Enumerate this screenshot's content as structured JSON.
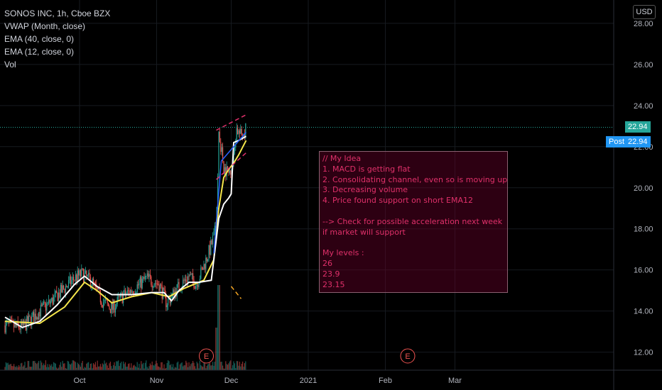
{
  "legend": {
    "title": "SONOS INC, 1h, Cboe BZX",
    "vwap": "VWAP (Month, close)",
    "ema40": "EMA (40, close, 0)",
    "ema12": "EMA (12, close, 0)",
    "vol": "Vol"
  },
  "currency": "USD",
  "last_price": "22.94",
  "post_label": "Post",
  "post_price": "22.94",
  "note": {
    "lines": [
      "// My Idea",
      "1. MACD is getting flat",
      "2. Consolidating channel, even so is moving up",
      "3. Decreasing volume",
      "4. Price found support on short EMA12",
      "",
      "--> Check for possible acceleration next week",
      "if market will support",
      "",
      "My levels :",
      "26",
      "23.9",
      "23.15"
    ]
  },
  "earnings_marker": "E",
  "colors": {
    "background": "#000000",
    "up": "#26a69a",
    "down": "#ef5350",
    "ema12": "#ffffff",
    "ema40": "#f5e64b",
    "vwap": "#2962ff",
    "annotation": "#e0306a",
    "orange": "#f5a623",
    "last_price_badge": "#26a69a",
    "post_badge": "#2196f3"
  },
  "chart_data": {
    "type": "line",
    "x_ticks": [
      "Oct",
      "Nov",
      "Dec",
      "2021",
      "Feb",
      "Mar"
    ],
    "y_ticks": [
      "12.00",
      "14.00",
      "16.00",
      "18.00",
      "20.00",
      "22.00",
      "24.00",
      "26.00",
      "28.00"
    ],
    "ylim": [
      11.4,
      28.1
    ],
    "price_path": [
      {
        "t": "Sep 1",
        "close": 13.3
      },
      {
        "t": "Sep 8",
        "close": 13.2
      },
      {
        "t": "Sep 15",
        "close": 14.0
      },
      {
        "t": "Sep 20",
        "close": 14.5
      },
      {
        "t": "Sep 24",
        "close": 15.0
      },
      {
        "t": "Sep 29",
        "close": 15.6
      },
      {
        "t": "Oct 2",
        "close": 15.8
      },
      {
        "t": "Oct 6",
        "close": 15.4
      },
      {
        "t": "Oct 10",
        "close": 14.5
      },
      {
        "t": "Oct 14",
        "close": 14.1
      },
      {
        "t": "Oct 18",
        "close": 14.7
      },
      {
        "t": "Oct 23",
        "close": 15.1
      },
      {
        "t": "Oct 28",
        "close": 15.6
      },
      {
        "t": "Nov 2",
        "close": 15.3
      },
      {
        "t": "Nov 5",
        "close": 14.4
      },
      {
        "t": "Nov 10",
        "close": 15.2
      },
      {
        "t": "Nov 14",
        "close": 15.7
      },
      {
        "t": "Nov 17",
        "close": 15.3
      },
      {
        "t": "Nov 20",
        "close": 16.2
      },
      {
        "t": "Nov 23",
        "close": 17.2
      },
      {
        "t": "Nov 25",
        "close": 18.1
      },
      {
        "t": "Nov 26",
        "close": 22.8
      },
      {
        "t": "Nov 28",
        "close": 21.0
      },
      {
        "t": "Nov 30",
        "close": 20.7
      },
      {
        "t": "Dec 2",
        "close": 21.4
      },
      {
        "t": "Dec 3",
        "close": 22.9
      },
      {
        "t": "Dec 5",
        "close": 22.5
      },
      {
        "t": "Dec 7",
        "close": 22.94
      }
    ],
    "ema12_path": [
      {
        "t": "Sep 1",
        "v": 13.7
      },
      {
        "t": "Sep 8",
        "v": 13.2
      },
      {
        "t": "Sep 15",
        "v": 13.5
      },
      {
        "t": "Sep 22",
        "v": 14.3
      },
      {
        "t": "Sep 29",
        "v": 15.3
      },
      {
        "t": "Oct 3",
        "v": 15.7
      },
      {
        "t": "Oct 8",
        "v": 15.2
      },
      {
        "t": "Oct 14",
        "v": 14.8
      },
      {
        "t": "Oct 22",
        "v": 14.8
      },
      {
        "t": "Oct 30",
        "v": 14.9
      },
      {
        "t": "Nov 4",
        "v": 14.9
      },
      {
        "t": "Nov 7",
        "v": 14.5
      },
      {
        "t": "Nov 10",
        "v": 15.0
      },
      {
        "t": "Nov 14",
        "v": 15.4
      },
      {
        "t": "Nov 18",
        "v": 15.4
      },
      {
        "t": "Nov 23",
        "v": 15.5
      },
      {
        "t": "Nov 24",
        "v": 16.5
      },
      {
        "t": "Nov 26",
        "v": 18.5
      },
      {
        "t": "Nov 28",
        "v": 19.2
      },
      {
        "t": "Nov 30",
        "v": 19.5
      },
      {
        "t": "Dec 1",
        "v": 19.7
      },
      {
        "t": "Dec 2",
        "v": 22.2
      },
      {
        "t": "Dec 4",
        "v": 22.3
      },
      {
        "t": "Dec 7",
        "v": 22.5
      }
    ],
    "ema40_path": [
      {
        "t": "Sep 1",
        "v": 13.5
      },
      {
        "t": "Sep 15",
        "v": 13.4
      },
      {
        "t": "Sep 25",
        "v": 14.2
      },
      {
        "t": "Oct 3",
        "v": 15.4
      },
      {
        "t": "Oct 8",
        "v": 15.0
      },
      {
        "t": "Oct 14",
        "v": 14.4
      },
      {
        "t": "Oct 22",
        "v": 14.7
      },
      {
        "t": "Oct 30",
        "v": 14.9
      },
      {
        "t": "Nov 6",
        "v": 14.7
      },
      {
        "t": "Nov 12",
        "v": 15.1
      },
      {
        "t": "Nov 20",
        "v": 15.5
      },
      {
        "t": "Nov 24",
        "v": 16.5
      },
      {
        "t": "Nov 26",
        "v": 19.0
      },
      {
        "t": "Nov 28",
        "v": 20.5
      },
      {
        "t": "Nov 30",
        "v": 20.9
      },
      {
        "t": "Dec 2",
        "v": 21.2
      },
      {
        "t": "Dec 4",
        "v": 21.6
      },
      {
        "t": "Dec 7",
        "v": 22.3
      }
    ],
    "channel_upper": [
      {
        "t": "Nov 25",
        "v": 22.8
      },
      {
        "t": "Dec 7",
        "v": 23.55
      }
    ],
    "channel_lower": [
      {
        "t": "Nov 25",
        "v": 20.4
      },
      {
        "t": "Dec 7",
        "v": 21.7
      }
    ],
    "orange_marker": [
      {
        "t": "Dec 1",
        "v": 15.2
      },
      {
        "t": "Dec 5",
        "v": 14.6
      }
    ],
    "earnings_dates": [
      "Nov 21",
      "Feb 10"
    ]
  }
}
